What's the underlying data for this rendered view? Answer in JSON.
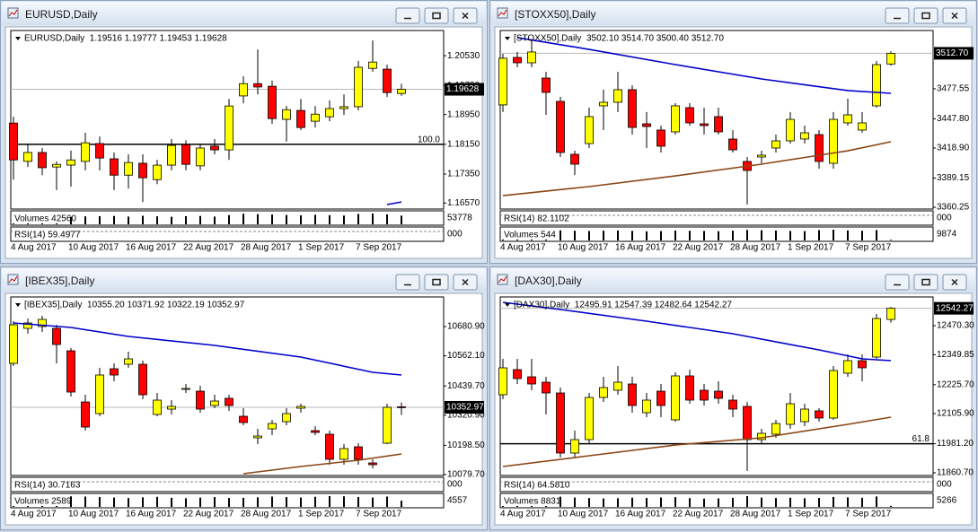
{
  "colors": {
    "up": "#ffff00",
    "down": "#ff0000",
    "outline": "#000000"
  },
  "windows": [
    {
      "title": "EURUSD,Daily",
      "header": "EURUSD,Daily  1.19516 1.19777 1.19453 1.19628",
      "ylim": [
        1.1641,
        1.2116
      ],
      "yticks": [
        {
          "value": 1.2053,
          "label": "1.20530"
        },
        {
          "value": 1.1973,
          "label": "1.19730"
        },
        {
          "value": 1.1895,
          "label": "1.18950"
        },
        {
          "value": 1.1815,
          "label": "1.18150"
        },
        {
          "value": 1.1735,
          "label": "1.17350"
        },
        {
          "value": 1.1657,
          "label": "1.16570"
        }
      ],
      "last_price": 1.19628,
      "candles": [
        [
          1.1872,
          1.1889,
          1.172,
          1.1773
        ],
        [
          1.1769,
          1.1817,
          1.1754,
          1.1793
        ],
        [
          1.1793,
          1.1805,
          1.1732,
          1.1752
        ],
        [
          1.1754,
          1.1769,
          1.1692,
          1.1761
        ],
        [
          1.1759,
          1.1798,
          1.1701,
          1.1773
        ],
        [
          1.1769,
          1.1846,
          1.1745,
          1.1819
        ],
        [
          1.1817,
          1.1836,
          1.1745,
          1.1778
        ],
        [
          1.1776,
          1.1793,
          1.1692,
          1.1732
        ],
        [
          1.1732,
          1.1788,
          1.1696,
          1.1766
        ],
        [
          1.1764,
          1.1788,
          1.166,
          1.1725
        ],
        [
          1.172,
          1.1773,
          1.1708,
          1.1759
        ],
        [
          1.1759,
          1.1829,
          1.1745,
          1.1812
        ],
        [
          1.1814,
          1.1826,
          1.1745,
          1.1761
        ],
        [
          1.1757,
          1.1817,
          1.1745,
          1.1805
        ],
        [
          1.181,
          1.1829,
          1.1788,
          1.18
        ],
        [
          1.18,
          1.1937,
          1.1773,
          1.1918
        ],
        [
          1.1945,
          1.1998,
          1.1925,
          1.1978
        ],
        [
          1.1978,
          1.207,
          1.1949,
          1.1969
        ],
        [
          1.1971,
          1.1986,
          1.187,
          1.1884
        ],
        [
          1.1882,
          1.1918,
          1.1822,
          1.1908
        ],
        [
          1.1906,
          1.1937,
          1.1853,
          1.186
        ],
        [
          1.1877,
          1.1918,
          1.186,
          1.1896
        ],
        [
          1.1889,
          1.1933,
          1.1877,
          1.1911
        ],
        [
          1.1911,
          1.1949,
          1.1894,
          1.1916
        ],
        [
          1.1916,
          1.2039,
          1.1906,
          1.2022
        ],
        [
          1.2019,
          1.2094,
          1.201,
          1.2036
        ],
        [
          1.2017,
          1.2029,
          1.1942,
          1.1954
        ],
        [
          1.19516,
          1.19777,
          1.19453,
          1.19628
        ]
      ],
      "moving_averages": [
        {
          "color": "#0000cc",
          "at": [
            26,
            27
          ],
          "values": [
            1.1653,
            1.166
          ]
        }
      ],
      "levels": [
        {
          "value": 1.1815,
          "label": "100.0"
        }
      ],
      "panes": [
        {
          "label": "Volumes 42560",
          "axis_label": "53778",
          "volumes": [
            30000,
            35000,
            38000,
            36000,
            37000,
            39000,
            40000,
            41000,
            38000,
            42000,
            39000,
            37000,
            40000,
            41000,
            38000,
            45000,
            52000,
            50000,
            48000,
            46000,
            44000,
            47000,
            45000,
            43000,
            51000,
            53000,
            49000,
            42560
          ]
        },
        {
          "label": "RSI(14) 59.4977",
          "axis_label": "000"
        }
      ],
      "dates": [
        "4 Aug 2017",
        "10 Aug 2017",
        "16 Aug 2017",
        "22 Aug 2017",
        "28 Aug 2017",
        "1 Sep 2017",
        "7 Sep 2017"
      ]
    },
    {
      "title": "[STOXX50],Daily",
      "header": "[STOXX50],Daily  3502.10 3514.70 3500.40 3512.70",
      "ylim": [
        3358.5,
        3533.5
      ],
      "yticks": [
        3477.55,
        {
          "value": 3447.8,
          "label": "3447.80"
        },
        {
          "value": 3418.9,
          "label": "3418.90"
        },
        3389.15,
        3360.25
      ],
      "last_price": {
        "value": 3512.7,
        "label": "3512.70"
      },
      "candles": [
        [
          3461.6,
          3512.2,
          3454.5,
          3507.8
        ],
        [
          3508.6,
          3514.0,
          3498.9,
          3503.3
        ],
        [
          3503.3,
          3525.5,
          3498.9,
          3514.0
        ],
        [
          3488.2,
          3494.4,
          3451.8,
          3474.0
        ],
        [
          3465.1,
          3469.6,
          3410.0,
          3414.5
        ],
        [
          3412.7,
          3416.2,
          3392.2,
          3402.9
        ],
        [
          3423.3,
          3458.9,
          3418.9,
          3450.0
        ],
        [
          3460.7,
          3476.7,
          3436.7,
          3464.2
        ],
        [
          3464.2,
          3494.4,
          3454.5,
          3476.7
        ],
        [
          3476.7,
          3481.1,
          3432.2,
          3439.3
        ],
        [
          3442.9,
          3454.5,
          3418.9,
          3440.2
        ],
        [
          3436.7,
          3441.1,
          3414.5,
          3420.7
        ],
        [
          3434.9,
          3463.3,
          3432.2,
          3460.7
        ],
        [
          3458.9,
          3463.3,
          3441.1,
          3443.8
        ],
        [
          3442.9,
          3458.9,
          3432.2,
          3441.1
        ],
        [
          3450.0,
          3458.9,
          3432.2,
          3434.9
        ],
        [
          3427.8,
          3436.7,
          3414.5,
          3417.1
        ],
        [
          3405.6,
          3410.0,
          3362.9,
          3396.7
        ],
        [
          3410.0,
          3416.2,
          3403.8,
          3411.8
        ],
        [
          3418.9,
          3432.2,
          3414.5,
          3426.0
        ],
        [
          3426.0,
          3454.5,
          3423.3,
          3447.3
        ],
        [
          3427.8,
          3441.1,
          3423.3,
          3434.0
        ],
        [
          3432.2,
          3436.7,
          3398.4,
          3405.6
        ],
        [
          3403.8,
          3454.5,
          3398.4,
          3447.3
        ],
        [
          3443.8,
          3467.8,
          3441.1,
          3451.8
        ],
        [
          3436.7,
          3454.5,
          3434.0,
          3443.8
        ],
        [
          3460.7,
          3505.1,
          3458.9,
          3501.5
        ],
        [
          3502.1,
          3514.7,
          3500.4,
          3512.7
        ]
      ],
      "moving_averages": [
        {
          "color": "#0000cc",
          "at": [
            1,
            6,
            12,
            18,
            24,
            27
          ],
          "values": [
            3528.2,
            3516.6,
            3501.5,
            3487.3,
            3475.8,
            3473.1
          ]
        },
        {
          "color": "#8b4513",
          "at": [
            0,
            6,
            12,
            18,
            24,
            27
          ],
          "values": [
            3371.8,
            3380.7,
            3391.3,
            3402.9,
            3416.2,
            3425.1
          ]
        }
      ],
      "levels": [],
      "panes": [
        {
          "label": "RSI(14) 82.1102",
          "axis_label": "000"
        },
        {
          "label": "Volumes 544",
          "axis_label": "9874",
          "volumes": [
            8000,
            8500,
            9000,
            9500,
            9200,
            8800,
            8600,
            8900,
            9100,
            8700,
            8300,
            8500,
            9000,
            8800,
            8600,
            8400,
            8900,
            9600,
            9300,
            9000,
            8700,
            8500,
            9400,
            9800,
            9100,
            8800,
            9500,
            544
          ]
        }
      ],
      "dates": [
        "4 Aug 2017",
        "10 Aug 2017",
        "16 Aug 2017",
        "22 Aug 2017",
        "28 Aug 2017",
        "1 Sep 2017",
        "7 Sep 2017"
      ]
    },
    {
      "title": "[IBEX35],Daily",
      "header": "[IBEX35],Daily  10355.20 10371.92 10322.19 10352.97",
      "ylim": [
        10076.0,
        10793.9
      ],
      "yticks": [
        {
          "value": 10680.9,
          "label": "10680.90"
        },
        {
          "value": 10562.1,
          "label": "10562.10"
        },
        {
          "value": 10439.7,
          "label": "10439.70"
        },
        {
          "value": 10320.9,
          "label": "10320.90"
        },
        {
          "value": 10198.5,
          "label": "10198.50"
        },
        {
          "value": 10079.7,
          "label": "10079.70"
        }
      ],
      "last_price": 10352.97,
      "candles": [
        [
          10531.5,
          10702.8,
          10520.6,
          10688.2
        ],
        [
          10673.6,
          10713.7,
          10651.7,
          10695.5
        ],
        [
          10680.9,
          10724.6,
          10659.0,
          10710.1
        ],
        [
          10673.6,
          10688.2,
          10531.5,
          10608.0
        ],
        [
          10582.5,
          10593.4,
          10396.7,
          10414.9
        ],
        [
          10374.8,
          10403.9,
          10258.2,
          10272.7
        ],
        [
          10327.4,
          10513.3,
          10316.5,
          10484.1
        ],
        [
          10509.6,
          10531.5,
          10458.6,
          10484.1
        ],
        [
          10527.8,
          10578.9,
          10513.3,
          10549.7
        ],
        [
          10527.8,
          10542.4,
          10385.7,
          10403.9
        ],
        [
          10323.8,
          10411.2,
          10316.5,
          10382.1
        ],
        [
          10345.6,
          10382.1,
          10323.8,
          10356.6
        ],
        [
          10425.8,
          10447.7,
          10411.2,
          10429.5
        ],
        [
          10418.5,
          10440.4,
          10331.1,
          10345.6
        ],
        [
          10360.2,
          10403.9,
          10349.3,
          10378.4
        ],
        [
          10389.4,
          10403.9,
          10338.3,
          10360.2
        ],
        [
          10316.5,
          10349.3,
          10280.0,
          10291.0
        ],
        [
          10229.0,
          10265.4,
          10203.5,
          10236.3
        ],
        [
          10265.4,
          10301.9,
          10239.9,
          10287.3
        ],
        [
          10294.6,
          10349.3,
          10280.0,
          10327.4
        ],
        [
          10349.3,
          10367.5,
          10331.1,
          10356.6
        ],
        [
          10258.2,
          10276.4,
          10239.9,
          10250.9
        ],
        [
          10243.6,
          10258.2,
          10119.7,
          10141.6
        ],
        [
          10141.6,
          10203.5,
          10119.7,
          10185.3
        ],
        [
          10192.6,
          10207.1,
          10119.7,
          10141.6
        ],
        [
          10127.0,
          10141.6,
          10105.1,
          10119.7
        ],
        [
          10207.1,
          10367.5,
          10203.5,
          10352.9
        ],
        [
          10355.2,
          10371.92,
          10322.19,
          10352.97
        ]
      ],
      "moving_averages": [
        {
          "color": "#0000cc",
          "at": [
            0,
            4,
            8,
            14,
            20,
            25,
            27
          ],
          "values": [
            10695.5,
            10677.3,
            10640.8,
            10604.4,
            10557.0,
            10495.1,
            10484.1
          ]
        },
        {
          "color": "#8b4513",
          "at": [
            16,
            20,
            24,
            27
          ],
          "values": [
            10083.3,
            10112.4,
            10137.9,
            10163.4
          ]
        }
      ],
      "levels": [],
      "panes": [
        {
          "label": "RSI(14) 30.7163",
          "axis_label": "000"
        },
        {
          "label": "Volumes 2589",
          "axis_label": "4557",
          "volumes": [
            3800,
            4000,
            3900,
            4200,
            4400,
            4300,
            4100,
            3900,
            3700,
            4000,
            4200,
            3800,
            3600,
            3900,
            4100,
            3700,
            3800,
            4000,
            4300,
            4100,
            3900,
            4200,
            4500,
            4400,
            4100,
            3900,
            4300,
            2589
          ]
        }
      ],
      "dates": [
        "4 Aug 2017",
        "10 Aug 2017",
        "16 Aug 2017",
        "22 Aug 2017",
        "28 Aug 2017",
        "1 Sep 2017",
        "7 Sep 2017"
      ]
    },
    {
      "title": "[DAX30],Daily",
      "header": "[DAX30],Daily  12495.91 12547.39 12482.64 12542.27",
      "ylim": [
        11849.6,
        12581.8
      ],
      "yticks": [
        {
          "value": 12470.3,
          "label": "12470.30"
        },
        12349.85,
        {
          "value": 12225.7,
          "label": "12225.70"
        },
        {
          "value": 12105.9,
          "label": "12105.90"
        },
        {
          "value": 11981.2,
          "label": "11981.20"
        },
        {
          "value": 11860.7,
          "label": "11860.70"
        }
      ],
      "last_price": 12542.27,
      "candles": [
        [
          12184.1,
          12332.8,
          12165.5,
          12295.6
        ],
        [
          12288.2,
          12332.8,
          12228.7,
          12251.0
        ],
        [
          12258.4,
          12332.8,
          12202.7,
          12228.7
        ],
        [
          12236.1,
          12258.4,
          12102.3,
          12191.5
        ],
        [
          12191.5,
          12213.8,
          11923.9,
          11942.5
        ],
        [
          11942.5,
          12035.4,
          11923.9,
          11998.2
        ],
        [
          11998.2,
          12191.5,
          11979.7,
          12172.9
        ],
        [
          12172.9,
          12258.4,
          12154.4,
          12213.8
        ],
        [
          12202.7,
          12303.0,
          12184.1,
          12236.1
        ],
        [
          12228.7,
          12258.4,
          12109.7,
          12139.5
        ],
        [
          12109.7,
          12191.5,
          12091.2,
          12161.8
        ],
        [
          12198.9,
          12228.7,
          12091.2,
          12139.5
        ],
        [
          12080.0,
          12277.0,
          12072.6,
          12262.2
        ],
        [
          12262.2,
          12288.2,
          12146.9,
          12161.8
        ],
        [
          12202.7,
          12228.7,
          12139.5,
          12161.8
        ],
        [
          12198.9,
          12239.8,
          12146.9,
          12169.2
        ],
        [
          12161.8,
          12184.1,
          12091.2,
          12124.6
        ],
        [
          12135.8,
          12154.4,
          11868.1,
          11998.2
        ],
        [
          11998.2,
          12042.8,
          11979.7,
          12024.3
        ],
        [
          12020.5,
          12080.0,
          12005.7,
          12065.1
        ],
        [
          12061.4,
          12191.5,
          12042.8,
          12146.9
        ],
        [
          12072.6,
          12146.9,
          12054.0,
          12124.6
        ],
        [
          12117.2,
          12128.3,
          12072.6,
          12087.5
        ],
        [
          12087.5,
          12303.0,
          12080.0,
          12284.5
        ],
        [
          12273.3,
          12351.4,
          12258.4,
          12325.3
        ],
        [
          12325.3,
          12351.4,
          12239.8,
          12295.6
        ],
        [
          12340.2,
          12518.6,
          12332.8,
          12500.0
        ],
        [
          12495.91,
          12547.39,
          12482.64,
          12542.27
        ]
      ],
      "moving_averages": [
        {
          "color": "#0000cc",
          "at": [
            0,
            4,
            10,
            16,
            22,
            25,
            27
          ],
          "values": [
            12566.9,
            12537.2,
            12488.9,
            12436.8,
            12369.9,
            12332.8,
            12325.3
          ]
        },
        {
          "color": "#8b4513",
          "at": [
            0,
            6,
            12,
            18,
            24,
            27
          ],
          "values": [
            11886.7,
            11931.3,
            11975.9,
            12005.7,
            12061.4,
            12091.2
          ]
        }
      ],
      "levels": [
        {
          "value": 11981.2,
          "label": "61.8"
        }
      ],
      "panes": [
        {
          "label": "RSI(14) 64.5810",
          "axis_label": "000"
        },
        {
          "label": "Volumes 8831",
          "axis_label": "5266",
          "volumes": [
            72000,
            80000,
            76000,
            84000,
            90000,
            82000,
            78000,
            74000,
            76000,
            81000,
            79000,
            83000,
            86000,
            77000,
            73000,
            75000,
            80000,
            95000,
            82000,
            78000,
            81000,
            76000,
            79000,
            88000,
            84000,
            80000,
            92000,
            8831
          ]
        }
      ],
      "dates": [
        "4 Aug 2017",
        "10 Aug 2017",
        "16 Aug 2017",
        "22 Aug 2017",
        "28 Aug 2017",
        "1 Sep 2017",
        "7 Sep 2017"
      ]
    }
  ]
}
